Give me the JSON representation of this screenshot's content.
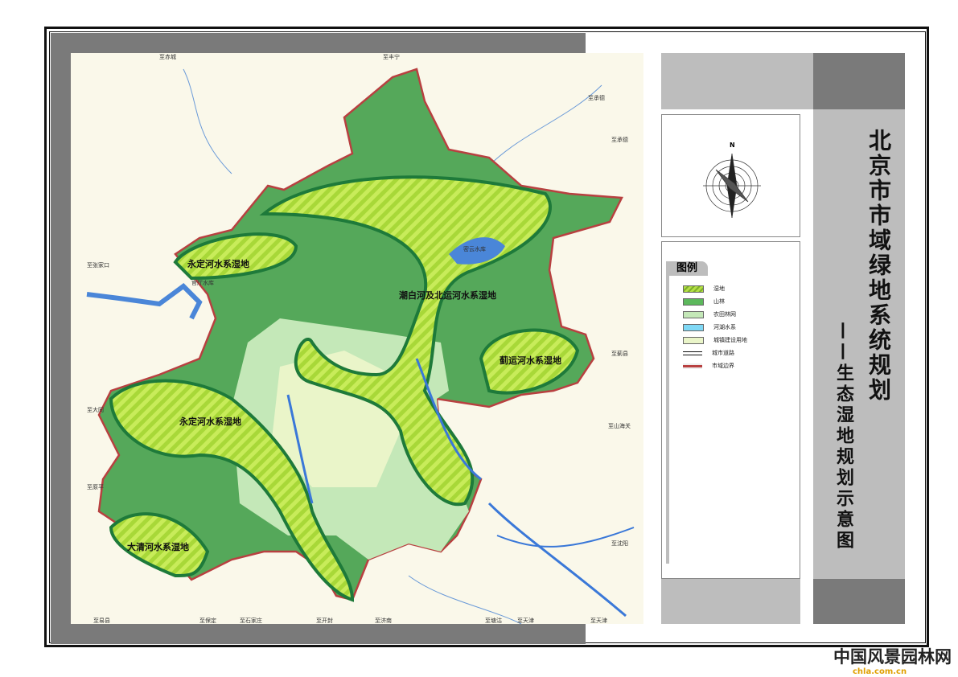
{
  "title": "北京市市域绿地系统规划",
  "subtitle": "——生态湿地规划示意图",
  "compass": {
    "north_label": "N"
  },
  "legend": {
    "heading": "图例",
    "items": [
      {
        "label": "湿地",
        "color": "#b5e046",
        "pattern": "hatched"
      },
      {
        "label": "山林",
        "color": "#5cb85c"
      },
      {
        "label": "农田林网",
        "color": "#c4e8b8"
      },
      {
        "label": "河湖水系",
        "color": "#7fd8f5"
      },
      {
        "label": "城镇建设用地",
        "color": "#eaf5c9"
      },
      {
        "label": "城市道路",
        "color": "#111111",
        "pattern": "double-line"
      },
      {
        "label": "市域边界",
        "color": "#b84040"
      }
    ]
  },
  "map": {
    "wetland_labels": [
      "永定河水系湿地",
      "潮白河及北运河水系湿地",
      "蓟运河水系湿地",
      "永定河水系湿地",
      "大清河水系湿地"
    ],
    "reservoirs": [
      "官厅水库",
      "密云水库"
    ],
    "directions": [
      "至赤城",
      "至丰宁",
      "至承德",
      "至承德",
      "至张家口",
      "至蓟县",
      "至大同",
      "至山海关",
      "至原平",
      "至沈阳",
      "至易县",
      "至保定",
      "至石家庄",
      "至开封",
      "至济南",
      "至塘沽",
      "至天津",
      "至天津"
    ]
  },
  "watermark": {
    "text": "中国风景园林网",
    "url_text": "chla.com.cn"
  }
}
